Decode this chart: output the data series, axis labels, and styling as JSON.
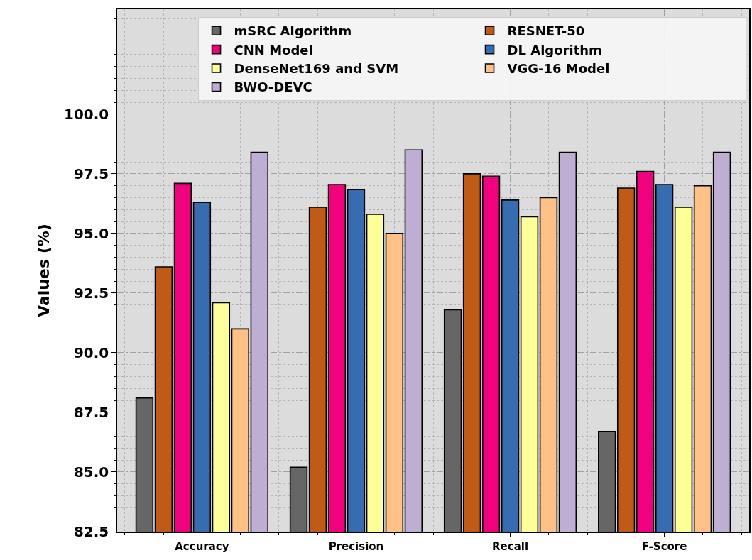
{
  "chart_data": {
    "type": "bar",
    "ylabel": "Values (%)",
    "categories": [
      "Accuracy",
      "Precision",
      "Recall",
      "F-Score"
    ],
    "series": [
      {
        "name": "mSRC Algorithm",
        "color": "#666666",
        "values": [
          88.1,
          85.2,
          91.8,
          86.7
        ]
      },
      {
        "name": "RESNET-50",
        "color": "#bf5b17",
        "values": [
          93.6,
          96.1,
          97.5,
          96.9
        ]
      },
      {
        "name": "CNN Model",
        "color": "#f0027f",
        "values": [
          97.1,
          97.05,
          97.4,
          97.6
        ]
      },
      {
        "name": "DL Algorithm",
        "color": "#386cb0",
        "values": [
          96.3,
          96.85,
          96.4,
          97.05
        ]
      },
      {
        "name": "DenseNet169 and SVM",
        "color": "#ffff99",
        "values": [
          92.1,
          95.8,
          95.7,
          96.1
        ]
      },
      {
        "name": "VGG-16 Model",
        "color": "#fdc086",
        "values": [
          91.0,
          95.0,
          96.5,
          97.0
        ]
      },
      {
        "name": "BWO-DEVC",
        "color": "#beaed4",
        "values": [
          98.4,
          98.5,
          98.4,
          98.4
        ]
      }
    ],
    "ylim": [
      82.5,
      104.4
    ],
    "yticks": [
      {
        "value": 82.5,
        "label": "82.5"
      },
      {
        "value": 85,
        "label": "85.0"
      },
      {
        "value": 87.5,
        "label": "87.5"
      },
      {
        "value": 90,
        "label": "90.0"
      },
      {
        "value": 92.5,
        "label": "92.5"
      },
      {
        "value": 95,
        "label": "95.0"
      },
      {
        "value": 97.5,
        "label": "97.5"
      },
      {
        "value": 100,
        "label": "100.0"
      }
    ],
    "grid": true,
    "legend": "top right"
  }
}
